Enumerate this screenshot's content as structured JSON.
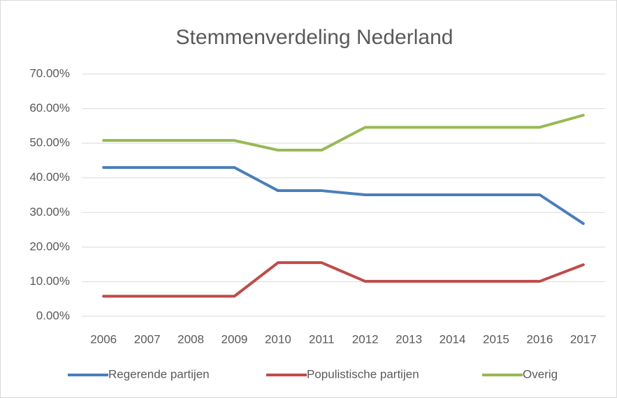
{
  "chart_data": {
    "type": "line",
    "title": "Stemmenverdeling Nederland",
    "categories": [
      "2006",
      "2007",
      "2008",
      "2009",
      "2010",
      "2011",
      "2012",
      "2013",
      "2014",
      "2015",
      "2016",
      "2017"
    ],
    "series": [
      {
        "name": "Regerende partijen",
        "color": "#4a7ebb",
        "values": [
          43,
          43,
          43,
          43,
          36.3,
          36.3,
          35.1,
          35.1,
          35.1,
          35.1,
          35.1,
          26.8
        ]
      },
      {
        "name": "Populistische partijen",
        "color": "#be4b48",
        "values": [
          5.8,
          5.8,
          5.8,
          5.8,
          15.5,
          15.5,
          10.1,
          10.1,
          10.1,
          10.1,
          10.1,
          14.9
        ]
      },
      {
        "name": "Overig",
        "color": "#98b954",
        "values": [
          50.8,
          50.8,
          50.8,
          50.8,
          48,
          48,
          54.6,
          54.6,
          54.6,
          54.6,
          54.6,
          58.1
        ]
      }
    ],
    "ylim": [
      0,
      70
    ],
    "yticks": [
      {
        "value": 0,
        "label": "0.00%"
      },
      {
        "value": 10,
        "label": "10.00%"
      },
      {
        "value": 20,
        "label": "20.00%"
      },
      {
        "value": 30,
        "label": "30.00%"
      },
      {
        "value": 40,
        "label": "40.00%"
      },
      {
        "value": 50,
        "label": "50.00%"
      },
      {
        "value": 60,
        "label": "60.00%"
      },
      {
        "value": 70,
        "label": "70.00%"
      }
    ],
    "grid": true,
    "legend": "bottom"
  }
}
